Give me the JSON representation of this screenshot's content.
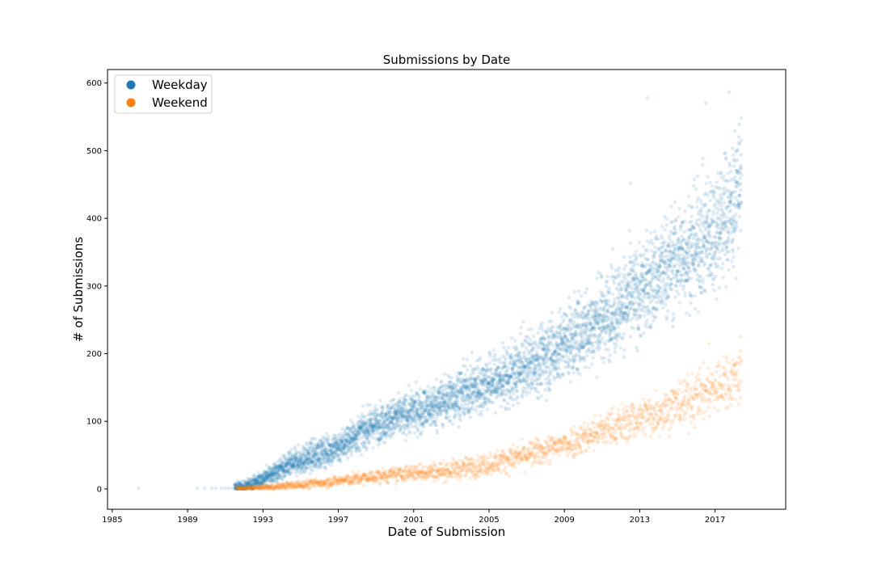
{
  "chart_data": {
    "type": "scatter",
    "title": "Submissions by Date",
    "xlabel": "Date of Submission",
    "ylabel": "# of Submissions",
    "xlim": [
      "1984-10-01",
      "2020-10-01"
    ],
    "ylim": [
      -30,
      620
    ],
    "xticks": [
      "1985",
      "1989",
      "1993",
      "1997",
      "2001",
      "2005",
      "2009",
      "2013",
      "2017"
    ],
    "yticks": [
      0,
      100,
      200,
      300,
      400,
      500,
      600
    ],
    "grid": false,
    "legend": {
      "placement": "top-left"
    },
    "series": [
      {
        "name": "Weekday",
        "color": "#1f77b4",
        "trend_points": [
          [
            "1986-05-01",
            1
          ],
          [
            "1989-07-01",
            1
          ],
          [
            "1990-01-01",
            1
          ],
          [
            "1991-01-01",
            1
          ],
          [
            "1992-01-01",
            3
          ],
          [
            "1993-01-01",
            15
          ],
          [
            "1994-01-01",
            30
          ],
          [
            "1995-01-01",
            42
          ],
          [
            "1996-01-01",
            52
          ],
          [
            "1997-01-01",
            62
          ],
          [
            "1998-01-01",
            80
          ],
          [
            "1999-01-01",
            96
          ],
          [
            "2000-01-01",
            105
          ],
          [
            "2001-01-01",
            113
          ],
          [
            "2002-01-01",
            122
          ],
          [
            "2003-01-01",
            135
          ],
          [
            "2004-01-01",
            146
          ],
          [
            "2005-01-01",
            157
          ],
          [
            "2006-01-01",
            165
          ],
          [
            "2007-01-01",
            182
          ],
          [
            "2008-01-01",
            197
          ],
          [
            "2009-01-01",
            214
          ],
          [
            "2010-01-01",
            232
          ],
          [
            "2011-01-01",
            252
          ],
          [
            "2012-01-01",
            272
          ],
          [
            "2013-01-01",
            292
          ],
          [
            "2014-01-01",
            316
          ],
          [
            "2015-01-01",
            340
          ],
          [
            "2016-01-01",
            360
          ],
          [
            "2017-01-01",
            385
          ],
          [
            "2018-01-01",
            420
          ],
          [
            "2018-06-01",
            470
          ]
        ],
        "spread": [
          [
            "1992-01-01",
            4
          ],
          [
            "1995-01-01",
            10
          ],
          [
            "2000-01-01",
            14
          ],
          [
            "2005-01-01",
            20
          ],
          [
            "2010-01-01",
            28
          ],
          [
            "2015-01-01",
            38
          ],
          [
            "2018-06-01",
            48
          ]
        ],
        "outliers": [
          [
            "2013-06-01",
            578
          ],
          [
            "2017-10-01",
            587
          ],
          [
            "2016-07-01",
            570
          ],
          [
            "2012-07-01",
            452
          ]
        ]
      },
      {
        "name": "Weekend",
        "color": "#ff7f0e",
        "trend_points": [
          [
            "1991-06-01",
            0
          ],
          [
            "1992-01-01",
            1
          ],
          [
            "1993-01-01",
            2
          ],
          [
            "1994-01-01",
            4
          ],
          [
            "1995-01-01",
            6
          ],
          [
            "1996-01-01",
            9
          ],
          [
            "1997-01-01",
            12
          ],
          [
            "1998-01-01",
            15
          ],
          [
            "1999-01-01",
            18
          ],
          [
            "2000-01-01",
            21
          ],
          [
            "2001-01-01",
            24
          ],
          [
            "2002-01-01",
            26
          ],
          [
            "2003-01-01",
            28
          ],
          [
            "2004-01-01",
            32
          ],
          [
            "2005-01-01",
            37
          ],
          [
            "2006-01-01",
            44
          ],
          [
            "2007-01-01",
            50
          ],
          [
            "2008-01-01",
            57
          ],
          [
            "2009-01-01",
            66
          ],
          [
            "2010-01-01",
            76
          ],
          [
            "2011-01-01",
            86
          ],
          [
            "2012-01-01",
            96
          ],
          [
            "2013-01-01",
            105
          ],
          [
            "2014-01-01",
            114
          ],
          [
            "2015-01-01",
            124
          ],
          [
            "2016-01-01",
            136
          ],
          [
            "2017-01-01",
            150
          ],
          [
            "2018-06-01",
            170
          ]
        ],
        "spread": [
          [
            "1992-01-01",
            1.5
          ],
          [
            "1997-01-01",
            4
          ],
          [
            "2003-01-01",
            7
          ],
          [
            "2008-01-01",
            10
          ],
          [
            "2013-01-01",
            15
          ],
          [
            "2018-06-01",
            22
          ]
        ],
        "outliers": [
          [
            "2018-05-01",
            225
          ],
          [
            "2016-09-01",
            215
          ]
        ]
      }
    ]
  }
}
